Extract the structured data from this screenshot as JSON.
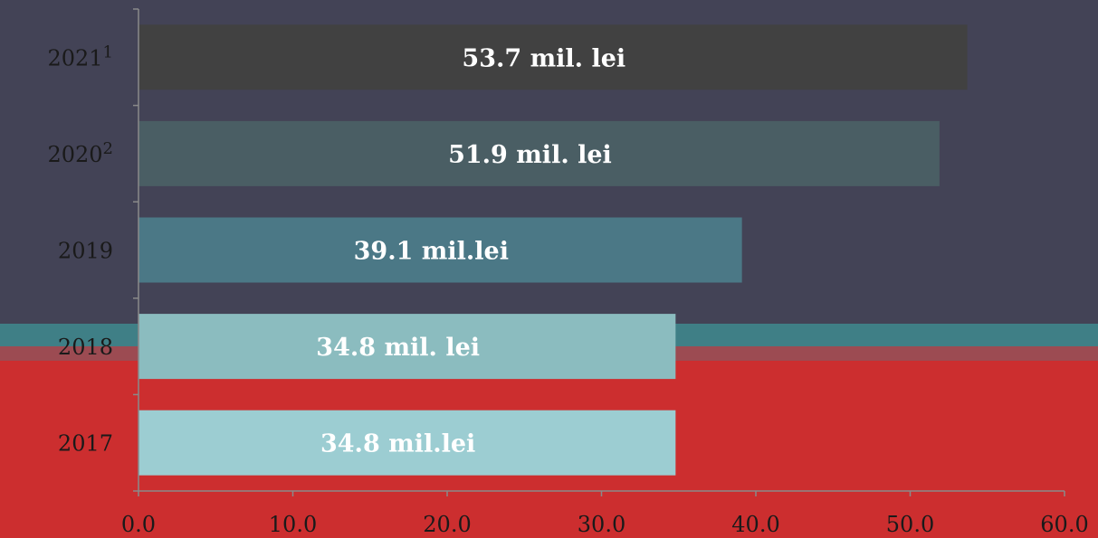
{
  "colors": {
    "background_top": "#434356",
    "background_band": "#3f7f86",
    "background_band_edge": "#9c4b52",
    "background_bottom": "#cc2e2f",
    "axis": "#8a8a8a"
  },
  "chart_data": {
    "type": "bar",
    "orientation": "horizontal",
    "title": "",
    "xlabel": "",
    "ylabel": "",
    "xlim": [
      0,
      60
    ],
    "x_ticks": [
      "0.0",
      "10.0",
      "20.0",
      "30.0",
      "40.0",
      "50.0",
      "60.0"
    ],
    "categories": [
      {
        "year": "2017",
        "sup": ""
      },
      {
        "year": "2018",
        "sup": ""
      },
      {
        "year": "2019",
        "sup": ""
      },
      {
        "year": "2020",
        "sup": "2"
      },
      {
        "year": "2021",
        "sup": "1"
      }
    ],
    "values": [
      34.8,
      34.8,
      39.1,
      51.9,
      53.7
    ],
    "data_labels": [
      "34.8 mil.lei",
      "34.8 mil. lei",
      "39.1 mil.lei",
      "51.9 mil. lei",
      "53.7 mil. lei"
    ],
    "bar_colors": [
      "#9ccdd2",
      "#8bbcbf",
      "#4b7886",
      "#4a5e64",
      "#414141"
    ],
    "grid": false,
    "legend": "none"
  }
}
